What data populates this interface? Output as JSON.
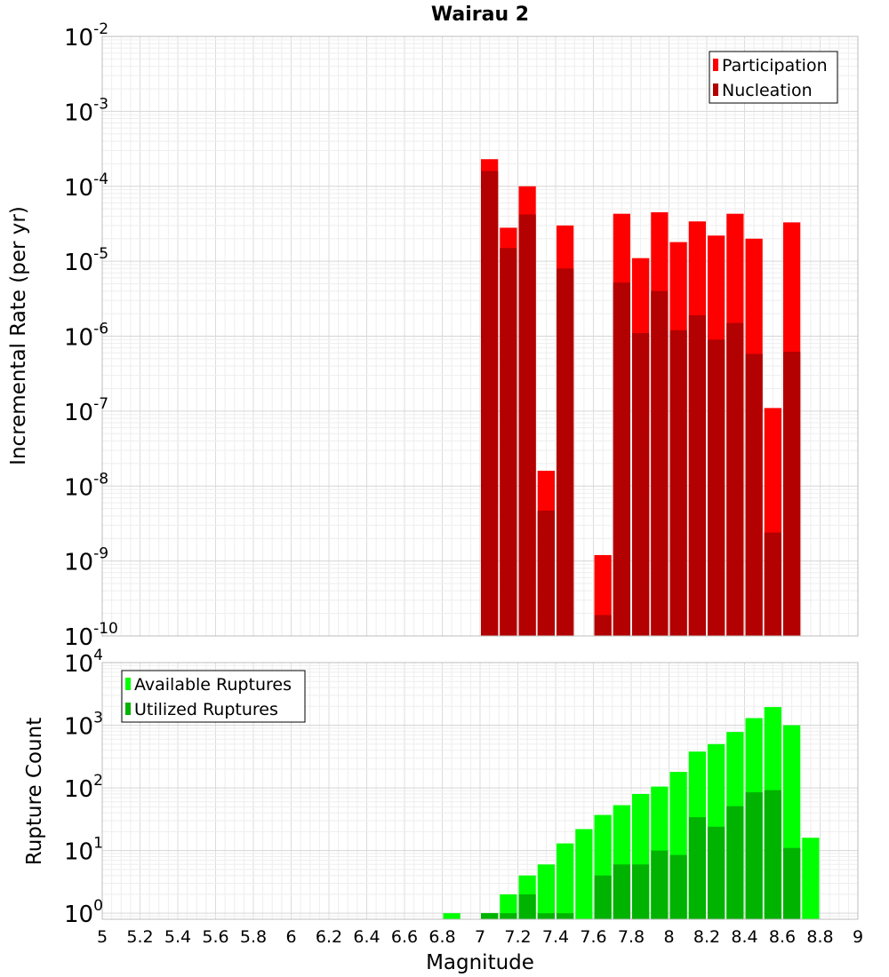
{
  "chart_data": [
    {
      "type": "bar",
      "title": "Wairau 2",
      "xlabel": "",
      "ylabel": "Incremental Rate (per yr)",
      "yscale": "log",
      "ylim": [
        1e-10,
        0.01
      ],
      "xlim": [
        5,
        9
      ],
      "bar_width": 0.1,
      "legend_position": "top-right",
      "grid": true,
      "y_ticks": [
        {
          "base": "10",
          "exp": "-10",
          "value": 1e-10
        },
        {
          "base": "10",
          "exp": "-9",
          "value": 1e-09
        },
        {
          "base": "10",
          "exp": "-8",
          "value": 1e-08
        },
        {
          "base": "10",
          "exp": "-7",
          "value": 1e-07
        },
        {
          "base": "10",
          "exp": "-6",
          "value": 1e-06
        },
        {
          "base": "10",
          "exp": "-5",
          "value": 1e-05
        },
        {
          "base": "10",
          "exp": "-4",
          "value": 0.0001
        },
        {
          "base": "10",
          "exp": "-3",
          "value": 0.001
        },
        {
          "base": "10",
          "exp": "-2",
          "value": 0.01
        }
      ],
      "series": [
        {
          "name": "Participation",
          "color": "#ff0000",
          "points": [
            {
              "x": 7.05,
              "y": 0.00023
            },
            {
              "x": 7.15,
              "y": 2.8e-05
            },
            {
              "x": 7.25,
              "y": 0.0001
            },
            {
              "x": 7.35,
              "y": 1.6e-08
            },
            {
              "x": 7.45,
              "y": 3e-05
            },
            {
              "x": 7.65,
              "y": 1.2e-09
            },
            {
              "x": 7.75,
              "y": 4.3e-05
            },
            {
              "x": 7.85,
              "y": 1.1e-05
            },
            {
              "x": 7.95,
              "y": 4.5e-05
            },
            {
              "x": 8.05,
              "y": 1.8e-05
            },
            {
              "x": 8.15,
              "y": 3.4e-05
            },
            {
              "x": 8.25,
              "y": 2.2e-05
            },
            {
              "x": 8.35,
              "y": 4.3e-05
            },
            {
              "x": 8.45,
              "y": 2e-05
            },
            {
              "x": 8.55,
              "y": 1.1e-07
            },
            {
              "x": 8.65,
              "y": 3.3e-05
            }
          ]
        },
        {
          "name": "Nucleation",
          "color": "#b30000",
          "points": [
            {
              "x": 7.05,
              "y": 0.00016
            },
            {
              "x": 7.15,
              "y": 1.5e-05
            },
            {
              "x": 7.25,
              "y": 4.2e-05
            },
            {
              "x": 7.35,
              "y": 4.7e-09
            },
            {
              "x": 7.45,
              "y": 8e-06
            },
            {
              "x": 7.65,
              "y": 1.9e-10
            },
            {
              "x": 7.75,
              "y": 5.2e-06
            },
            {
              "x": 7.85,
              "y": 1.1e-06
            },
            {
              "x": 7.95,
              "y": 4e-06
            },
            {
              "x": 8.05,
              "y": 1.2e-06
            },
            {
              "x": 8.15,
              "y": 1.9e-06
            },
            {
              "x": 8.25,
              "y": 9e-07
            },
            {
              "x": 8.35,
              "y": 1.5e-06
            },
            {
              "x": 8.45,
              "y": 5.8e-07
            },
            {
              "x": 8.55,
              "y": 2.4e-09
            },
            {
              "x": 8.65,
              "y": 6.2e-07
            }
          ]
        }
      ]
    },
    {
      "type": "bar",
      "title": "",
      "xlabel": "Magnitude",
      "ylabel": "Rupture Count",
      "yscale": "log",
      "ylim": [
        0.8,
        10000
      ],
      "xlim": [
        5,
        9
      ],
      "bar_width": 0.1,
      "legend_position": "top-left",
      "grid": true,
      "x_ticks": [
        "5",
        "5.2",
        "5.4",
        "5.6",
        "5.8",
        "6",
        "6.2",
        "6.4",
        "6.6",
        "6.8",
        "7",
        "7.2",
        "7.4",
        "7.6",
        "7.8",
        "8",
        "8.2",
        "8.4",
        "8.6",
        "8.8",
        "9"
      ],
      "y_ticks": [
        {
          "base": "10",
          "exp": "0",
          "value": 1
        },
        {
          "base": "10",
          "exp": "1",
          "value": 10
        },
        {
          "base": "10",
          "exp": "2",
          "value": 100
        },
        {
          "base": "10",
          "exp": "3",
          "value": 1000
        },
        {
          "base": "10",
          "exp": "4",
          "value": 10000
        }
      ],
      "series": [
        {
          "name": "Available Ruptures",
          "color": "#00ff00",
          "points": [
            {
              "x": 6.85,
              "y": 1
            },
            {
              "x": 7.05,
              "y": 1
            },
            {
              "x": 7.15,
              "y": 2
            },
            {
              "x": 7.25,
              "y": 4
            },
            {
              "x": 7.35,
              "y": 6
            },
            {
              "x": 7.45,
              "y": 13
            },
            {
              "x": 7.55,
              "y": 22
            },
            {
              "x": 7.65,
              "y": 37
            },
            {
              "x": 7.75,
              "y": 53
            },
            {
              "x": 7.85,
              "y": 80
            },
            {
              "x": 7.95,
              "y": 105
            },
            {
              "x": 8.05,
              "y": 180
            },
            {
              "x": 8.15,
              "y": 380
            },
            {
              "x": 8.25,
              "y": 500
            },
            {
              "x": 8.35,
              "y": 780
            },
            {
              "x": 8.45,
              "y": 1300
            },
            {
              "x": 8.55,
              "y": 1950
            },
            {
              "x": 8.65,
              "y": 1000
            },
            {
              "x": 8.75,
              "y": 16
            }
          ]
        },
        {
          "name": "Utilized Ruptures",
          "color": "#00b300",
          "points": [
            {
              "x": 7.05,
              "y": 1
            },
            {
              "x": 7.15,
              "y": 1
            },
            {
              "x": 7.25,
              "y": 2
            },
            {
              "x": 7.35,
              "y": 1
            },
            {
              "x": 7.45,
              "y": 1
            },
            {
              "x": 7.65,
              "y": 4
            },
            {
              "x": 7.75,
              "y": 6
            },
            {
              "x": 7.85,
              "y": 6
            },
            {
              "x": 7.95,
              "y": 10
            },
            {
              "x": 8.05,
              "y": 8.5
            },
            {
              "x": 8.15,
              "y": 34
            },
            {
              "x": 8.25,
              "y": 24
            },
            {
              "x": 8.35,
              "y": 51
            },
            {
              "x": 8.45,
              "y": 85
            },
            {
              "x": 8.55,
              "y": 92
            },
            {
              "x": 8.65,
              "y": 11
            }
          ]
        }
      ]
    }
  ]
}
